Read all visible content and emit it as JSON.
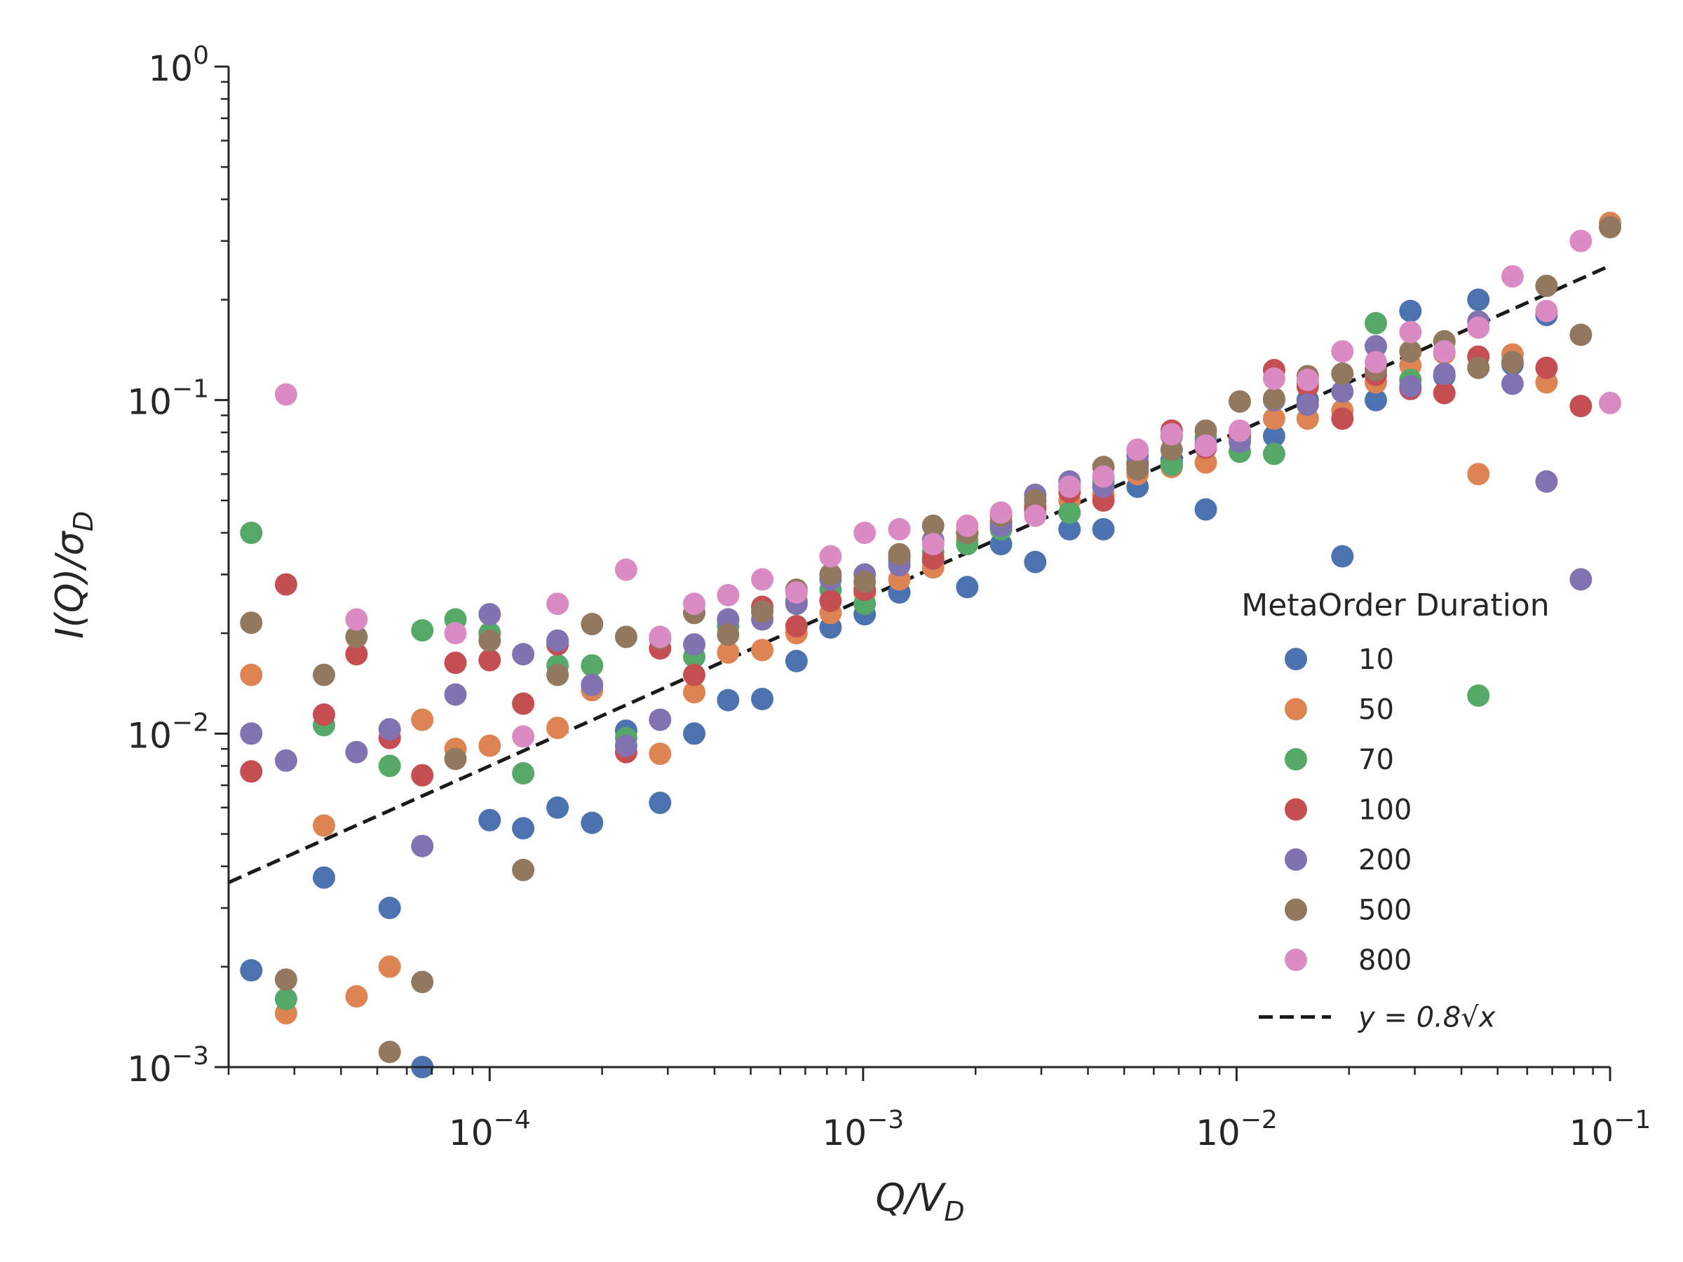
{
  "chart_data": {
    "type": "scatter",
    "xlabel_parts": [
      "Q/V",
      "D"
    ],
    "ylabel_parts": [
      "I(Q)/σ",
      "D"
    ],
    "x_scale": "log",
    "y_scale": "log",
    "xlim": [
      2e-05,
      0.1
    ],
    "ylim": [
      0.001,
      1
    ],
    "x_ticks": [
      {
        "value": 0.0001,
        "base": "10",
        "exp": "−4"
      },
      {
        "value": 0.001,
        "base": "10",
        "exp": "−3"
      },
      {
        "value": 0.01,
        "base": "10",
        "exp": "−2"
      },
      {
        "value": 0.1,
        "base": "10",
        "exp": "−1"
      }
    ],
    "y_ticks": [
      {
        "value": 0.001,
        "base": "10",
        "exp": "−3"
      },
      {
        "value": 0.01,
        "base": "10",
        "exp": "−2"
      },
      {
        "value": 0.1,
        "base": "10",
        "exp": "−1"
      },
      {
        "value": 1,
        "base": "10",
        "exp": "0"
      }
    ],
    "grid": false,
    "legend": {
      "title": "MetaOrder Duration",
      "placement": "right",
      "fit_label": "y = 0.8√x"
    },
    "fit_line": {
      "coefficient": 0.8,
      "exponent": 0.5,
      "style": "dashed",
      "color": "#1a1a1a"
    },
    "series": [
      {
        "name": "10",
        "color": "#4c72b0",
        "points": [
          [
            2.3e-05,
            0.00195
          ],
          [
            5.4e-05,
            0.003
          ],
          [
            6.6e-05,
            0.001
          ],
          [
            3.6e-05,
            0.0037
          ],
          [
            0.0001,
            0.0055
          ],
          [
            0.000123,
            0.0052
          ],
          [
            0.000152,
            0.006
          ],
          [
            0.000188,
            0.0054
          ],
          [
            0.000232,
            0.0102
          ],
          [
            0.000286,
            0.0062
          ],
          [
            0.000353,
            0.01
          ],
          [
            0.000435,
            0.0126
          ],
          [
            0.000537,
            0.0127
          ],
          [
            0.000663,
            0.0165
          ],
          [
            0.000818,
            0.0208
          ],
          [
            0.00101,
            0.0228
          ],
          [
            0.00125,
            0.0265
          ],
          [
            0.00154,
            0.033
          ],
          [
            0.0019,
            0.0275
          ],
          [
            0.00234,
            0.037
          ],
          [
            0.00289,
            0.0327
          ],
          [
            0.00357,
            0.041
          ],
          [
            0.0044,
            0.041
          ],
          [
            0.00543,
            0.055
          ],
          [
            0.0067,
            0.066
          ],
          [
            0.00827,
            0.047
          ],
          [
            0.0102,
            0.08
          ],
          [
            0.0126,
            0.078
          ],
          [
            0.0155,
            0.1
          ],
          [
            0.0192,
            0.034
          ],
          [
            0.0236,
            0.1
          ],
          [
            0.0292,
            0.185
          ],
          [
            0.036,
            0.118
          ],
          [
            0.0444,
            0.2
          ],
          [
            0.0548,
            0.128
          ],
          [
            0.0676,
            0.18
          ]
        ]
      },
      {
        "name": "50",
        "color": "#dd8452",
        "points": [
          [
            2.3e-05,
            0.015
          ],
          [
            2.85e-05,
            0.00145
          ],
          [
            3.6e-05,
            0.0053
          ],
          [
            4.4e-05,
            0.00163
          ],
          [
            5.4e-05,
            0.002
          ],
          [
            6.6e-05,
            0.011
          ],
          [
            8.1e-05,
            0.009
          ],
          [
            0.0001,
            0.0092
          ],
          [
            0.000152,
            0.0104
          ],
          [
            0.000188,
            0.0135
          ],
          [
            0.000286,
            0.0087
          ],
          [
            0.000353,
            0.0133
          ],
          [
            0.000435,
            0.0175
          ],
          [
            0.000537,
            0.0178
          ],
          [
            0.000663,
            0.02
          ],
          [
            0.000818,
            0.023
          ],
          [
            0.00101,
            0.0264
          ],
          [
            0.00125,
            0.029
          ],
          [
            0.00154,
            0.0315
          ],
          [
            0.0019,
            0.038
          ],
          [
            0.00234,
            0.042
          ],
          [
            0.00289,
            0.046
          ],
          [
            0.00357,
            0.05
          ],
          [
            0.0044,
            0.052
          ],
          [
            0.00543,
            0.06
          ],
          [
            0.0067,
            0.063
          ],
          [
            0.00827,
            0.065
          ],
          [
            0.0102,
            0.077
          ],
          [
            0.0126,
            0.088
          ],
          [
            0.0155,
            0.088
          ],
          [
            0.0192,
            0.093
          ],
          [
            0.0236,
            0.113
          ],
          [
            0.0292,
            0.127
          ],
          [
            0.036,
            0.138
          ],
          [
            0.0444,
            0.06
          ],
          [
            0.0548,
            0.137
          ],
          [
            0.0676,
            0.113
          ],
          [
            0.1,
            0.34
          ]
        ]
      },
      {
        "name": "70",
        "color": "#55a868",
        "points": [
          [
            2.3e-05,
            0.04
          ],
          [
            2.85e-05,
            0.0016
          ],
          [
            3.6e-05,
            0.0106
          ],
          [
            5.4e-05,
            0.008
          ],
          [
            6.6e-05,
            0.0204
          ],
          [
            8.1e-05,
            0.022
          ],
          [
            0.0001,
            0.02
          ],
          [
            0.000123,
            0.0076
          ],
          [
            0.000152,
            0.016
          ],
          [
            0.000188,
            0.016
          ],
          [
            0.000232,
            0.0097
          ],
          [
            0.000353,
            0.017
          ],
          [
            0.000435,
            0.021
          ],
          [
            0.000663,
            0.025
          ],
          [
            0.000818,
            0.027
          ],
          [
            0.00101,
            0.0245
          ],
          [
            0.00125,
            0.033
          ],
          [
            0.00154,
            0.035
          ],
          [
            0.0019,
            0.037
          ],
          [
            0.00234,
            0.041
          ],
          [
            0.00289,
            0.047
          ],
          [
            0.00357,
            0.046
          ],
          [
            0.0044,
            0.057
          ],
          [
            0.00543,
            0.065
          ],
          [
            0.0067,
            0.064
          ],
          [
            0.00827,
            0.077
          ],
          [
            0.0102,
            0.07
          ],
          [
            0.0126,
            0.069
          ],
          [
            0.0155,
            0.113
          ],
          [
            0.0192,
            0.12
          ],
          [
            0.0236,
            0.17
          ],
          [
            0.0292,
            0.115
          ],
          [
            0.036,
            0.15
          ],
          [
            0.0444,
            0.013
          ]
        ]
      },
      {
        "name": "100",
        "color": "#c44e52",
        "points": [
          [
            2.3e-05,
            0.0077
          ],
          [
            2.85e-05,
            0.028
          ],
          [
            3.6e-05,
            0.0114
          ],
          [
            4.4e-05,
            0.0173
          ],
          [
            5.4e-05,
            0.0097
          ],
          [
            6.6e-05,
            0.0075
          ],
          [
            8.1e-05,
            0.0163
          ],
          [
            0.0001,
            0.0166
          ],
          [
            0.000123,
            0.0123
          ],
          [
            0.000152,
            0.0185
          ],
          [
            0.000232,
            0.0088
          ],
          [
            0.000286,
            0.018
          ],
          [
            0.000353,
            0.015
          ],
          [
            0.000435,
            0.022
          ],
          [
            0.000537,
            0.024
          ],
          [
            0.000663,
            0.021
          ],
          [
            0.000818,
            0.025
          ],
          [
            0.00101,
            0.027
          ],
          [
            0.00125,
            0.034
          ],
          [
            0.00154,
            0.0335
          ],
          [
            0.0019,
            0.04
          ],
          [
            0.00234,
            0.043
          ],
          [
            0.00289,
            0.048
          ],
          [
            0.00357,
            0.053
          ],
          [
            0.0044,
            0.05
          ],
          [
            0.00543,
            0.064
          ],
          [
            0.0067,
            0.081
          ],
          [
            0.00827,
            0.072
          ],
          [
            0.0102,
            0.078
          ],
          [
            0.0126,
            0.123
          ],
          [
            0.0155,
            0.11
          ],
          [
            0.0192,
            0.088
          ],
          [
            0.0236,
            0.119
          ],
          [
            0.0292,
            0.108
          ],
          [
            0.036,
            0.105
          ],
          [
            0.0444,
            0.135
          ],
          [
            0.0676,
            0.125
          ],
          [
            0.0835,
            0.096
          ]
        ]
      },
      {
        "name": "200",
        "color": "#8172b2",
        "points": [
          [
            2.3e-05,
            0.01
          ],
          [
            2.85e-05,
            0.0083
          ],
          [
            4.4e-05,
            0.0088
          ],
          [
            5.4e-05,
            0.0103
          ],
          [
            6.6e-05,
            0.0046
          ],
          [
            8.1e-05,
            0.0131
          ],
          [
            0.0001,
            0.0228
          ],
          [
            0.000123,
            0.0173
          ],
          [
            0.000152,
            0.019
          ],
          [
            0.000188,
            0.014
          ],
          [
            0.000232,
            0.0092
          ],
          [
            0.000286,
            0.011
          ],
          [
            0.000353,
            0.0185
          ],
          [
            0.000435,
            0.022
          ],
          [
            0.000537,
            0.022
          ],
          [
            0.000663,
            0.0245
          ],
          [
            0.000818,
            0.029
          ],
          [
            0.00101,
            0.03
          ],
          [
            0.00125,
            0.032
          ],
          [
            0.00154,
            0.038
          ],
          [
            0.0019,
            0.04
          ],
          [
            0.00234,
            0.042
          ],
          [
            0.00289,
            0.052
          ],
          [
            0.00357,
            0.057
          ],
          [
            0.0044,
            0.055
          ],
          [
            0.00543,
            0.068
          ],
          [
            0.0067,
            0.078
          ],
          [
            0.00827,
            0.074
          ],
          [
            0.0102,
            0.075
          ],
          [
            0.0126,
            0.1
          ],
          [
            0.0155,
            0.097
          ],
          [
            0.0192,
            0.106
          ],
          [
            0.0236,
            0.145
          ],
          [
            0.0292,
            0.11
          ],
          [
            0.036,
            0.12
          ],
          [
            0.0444,
            0.172
          ],
          [
            0.0548,
            0.112
          ],
          [
            0.0676,
            0.057
          ],
          [
            0.0835,
            0.029
          ]
        ]
      },
      {
        "name": "500",
        "color": "#937860",
        "points": [
          [
            2.3e-05,
            0.0215
          ],
          [
            2.85e-05,
            0.00183
          ],
          [
            3.6e-05,
            0.015
          ],
          [
            4.4e-05,
            0.0195
          ],
          [
            5.4e-05,
            0.00111
          ],
          [
            6.6e-05,
            0.0018
          ],
          [
            8.1e-05,
            0.0084
          ],
          [
            0.0001,
            0.019
          ],
          [
            0.000123,
            0.0039
          ],
          [
            0.000152,
            0.015
          ],
          [
            0.000188,
            0.0213
          ],
          [
            0.000232,
            0.0195
          ],
          [
            0.000286,
            0.0193
          ],
          [
            0.000353,
            0.023
          ],
          [
            0.000435,
            0.0198
          ],
          [
            0.000537,
            0.0232
          ],
          [
            0.000663,
            0.027
          ],
          [
            0.000818,
            0.03
          ],
          [
            0.00101,
            0.0285
          ],
          [
            0.00125,
            0.0345
          ],
          [
            0.00154,
            0.042
          ],
          [
            0.0019,
            0.04
          ],
          [
            0.00234,
            0.045
          ],
          [
            0.00289,
            0.05
          ],
          [
            0.00357,
            0.055
          ],
          [
            0.0044,
            0.063
          ],
          [
            0.00543,
            0.062
          ],
          [
            0.0067,
            0.071
          ],
          [
            0.00827,
            0.081
          ],
          [
            0.0102,
            0.099
          ],
          [
            0.0126,
            0.101
          ],
          [
            0.0155,
            0.118
          ],
          [
            0.0192,
            0.12
          ],
          [
            0.0236,
            0.123
          ],
          [
            0.0292,
            0.14
          ],
          [
            0.036,
            0.15
          ],
          [
            0.0444,
            0.125
          ],
          [
            0.0548,
            0.13
          ],
          [
            0.0676,
            0.22
          ],
          [
            0.0835,
            0.157
          ],
          [
            0.1,
            0.33
          ]
        ]
      },
      {
        "name": "800",
        "color": "#da8bc3",
        "points": [
          [
            2.85e-05,
            0.104
          ],
          [
            4.4e-05,
            0.022
          ],
          [
            8.1e-05,
            0.02
          ],
          [
            0.000123,
            0.0098
          ],
          [
            0.000152,
            0.0245
          ],
          [
            0.000232,
            0.031
          ],
          [
            0.000286,
            0.0195
          ],
          [
            0.000353,
            0.0245
          ],
          [
            0.000435,
            0.026
          ],
          [
            0.000537,
            0.029
          ],
          [
            0.000663,
            0.0265
          ],
          [
            0.000818,
            0.034
          ],
          [
            0.00101,
            0.04
          ],
          [
            0.00125,
            0.041
          ],
          [
            0.00154,
            0.037
          ],
          [
            0.0019,
            0.042
          ],
          [
            0.00234,
            0.046
          ],
          [
            0.00289,
            0.045
          ],
          [
            0.00357,
            0.055
          ],
          [
            0.0044,
            0.059
          ],
          [
            0.00543,
            0.071
          ],
          [
            0.0067,
            0.079
          ],
          [
            0.00827,
            0.073
          ],
          [
            0.0102,
            0.081
          ],
          [
            0.0126,
            0.116
          ],
          [
            0.0155,
            0.115
          ],
          [
            0.0192,
            0.14
          ],
          [
            0.0236,
            0.13
          ],
          [
            0.0292,
            0.16
          ],
          [
            0.036,
            0.14
          ],
          [
            0.0444,
            0.165
          ],
          [
            0.0548,
            0.235
          ],
          [
            0.0676,
            0.185
          ],
          [
            0.0835,
            0.3
          ],
          [
            0.1,
            0.098
          ]
        ]
      }
    ]
  }
}
